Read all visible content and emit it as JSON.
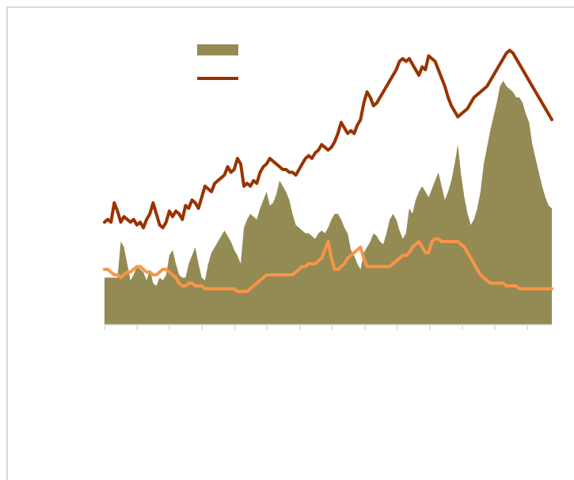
{
  "chart_data": {
    "type": "area",
    "title": "",
    "xlabel": "",
    "ylabel": "",
    "grid": false,
    "legend": "top-center",
    "colors": {
      "area": "#948a54",
      "line_dark": "#993300",
      "line_light": "#f79646",
      "axis": "#d9d9d9"
    },
    "x": [
      0,
      1,
      2,
      3,
      4,
      5,
      6,
      7,
      8,
      9,
      10,
      11,
      12,
      13,
      14,
      15,
      16,
      17,
      18,
      19,
      20,
      21,
      22,
      23,
      24,
      25,
      26,
      27,
      28,
      29,
      30,
      31,
      32,
      33,
      34,
      35,
      36,
      37,
      38,
      39,
      40,
      41,
      42,
      43,
      44,
      45,
      46,
      47,
      48,
      49,
      50,
      51,
      52,
      53,
      54,
      55,
      56,
      57,
      58,
      59,
      60,
      61,
      62,
      63,
      64,
      65,
      66,
      67,
      68,
      69,
      70,
      71,
      72,
      73,
      74,
      75,
      76,
      77,
      78,
      79,
      80,
      81,
      82,
      83,
      84,
      85,
      86,
      87,
      88,
      89,
      90,
      91,
      92,
      93,
      94,
      95,
      96,
      97,
      98,
      99,
      100,
      101,
      102,
      103,
      104,
      105,
      106,
      107,
      108,
      109,
      110,
      111,
      112,
      113,
      114,
      115,
      116,
      117,
      118,
      119,
      120,
      121,
      122,
      123,
      124,
      125,
      126,
      127,
      128,
      129,
      130,
      131,
      132,
      133,
      134,
      135,
      136,
      137,
      138
    ],
    "xlim": [
      0,
      138
    ],
    "ylim": [
      0,
      100
    ],
    "series": [
      {
        "name": "",
        "kind": "area",
        "values": [
          17,
          17,
          17,
          17,
          17,
          30,
          28,
          22,
          16,
          18,
          21,
          20,
          19,
          16,
          20,
          15,
          14,
          17,
          16,
          18,
          25,
          27,
          22,
          18,
          17,
          17,
          22,
          25,
          28,
          22,
          17,
          16,
          22,
          26,
          28,
          30,
          32,
          34,
          32,
          30,
          27,
          25,
          22,
          35,
          38,
          40,
          39,
          38,
          42,
          45,
          48,
          43,
          44,
          47,
          52,
          50,
          48,
          45,
          40,
          36,
          35,
          34,
          33,
          33,
          32,
          31,
          33,
          34,
          33,
          35,
          38,
          40,
          40,
          38,
          35,
          33,
          27,
          25,
          22,
          20,
          26,
          28,
          30,
          33,
          32,
          30,
          29,
          33,
          38,
          40,
          38,
          34,
          31,
          33,
          42,
          40,
          45,
          48,
          50,
          48,
          46,
          49,
          52,
          55,
          50,
          45,
          48,
          52,
          58,
          65,
          54,
          46,
          40,
          36,
          38,
          42,
          48,
          58,
          64,
          70,
          75,
          80,
          86,
          88,
          86,
          85,
          84,
          82,
          82,
          80,
          76,
          73,
          65,
          60,
          55,
          50,
          46,
          43,
          42
        ]
      },
      {
        "name": "",
        "kind": "line",
        "color": "dark",
        "values": [
          37,
          38,
          37,
          44,
          41,
          37,
          39,
          38,
          37,
          38,
          36,
          37,
          35,
          38,
          40,
          44,
          40,
          36,
          35,
          37,
          41,
          39,
          41,
          40,
          38,
          43,
          42,
          45,
          44,
          42,
          46,
          50,
          49,
          48,
          51,
          52,
          53,
          54,
          57,
          55,
          56,
          60,
          58,
          50,
          51,
          50,
          52,
          51,
          55,
          57,
          58,
          60,
          59,
          58,
          57,
          56,
          56,
          55,
          55,
          54,
          56,
          58,
          60,
          61,
          60,
          62,
          63,
          65,
          64,
          63,
          64,
          66,
          69,
          73,
          71,
          69,
          70,
          69,
          72,
          74,
          80,
          84,
          82,
          79,
          80,
          82,
          84,
          86,
          88,
          90,
          92,
          95,
          96,
          95,
          96,
          94,
          92,
          90,
          93,
          92,
          97,
          96,
          95,
          92,
          89,
          86,
          82,
          79,
          77,
          75,
          76,
          77,
          78,
          80,
          82,
          83,
          84,
          85,
          86,
          88,
          90,
          92,
          94,
          96,
          98,
          99,
          98,
          96,
          94,
          92,
          90,
          88,
          86,
          84,
          82,
          80,
          78,
          76,
          74
        ]
      },
      {
        "name": "",
        "kind": "line",
        "color": "light",
        "values": [
          20,
          20,
          19,
          18,
          18,
          17,
          18,
          19,
          19,
          20,
          21,
          21,
          20,
          19,
          19,
          18,
          18,
          19,
          20,
          20,
          19,
          18,
          17,
          15,
          14,
          14,
          15,
          15,
          14,
          14,
          14,
          13,
          13,
          13,
          13,
          13,
          13,
          13,
          13,
          13,
          13,
          12,
          12,
          12,
          12,
          13,
          14,
          15,
          16,
          17,
          18,
          18,
          18,
          18,
          18,
          18,
          18,
          18,
          18,
          19,
          20,
          21,
          21,
          22,
          22,
          22,
          23,
          24,
          27,
          30,
          24,
          20,
          20,
          21,
          22,
          24,
          25,
          26,
          27,
          28,
          24,
          21,
          21,
          21,
          21,
          21,
          21,
          21,
          21,
          22,
          23,
          24,
          25,
          25,
          26,
          28,
          29,
          30,
          28,
          26,
          26,
          30,
          31,
          31,
          30,
          30,
          30,
          30,
          30,
          30,
          29,
          28,
          26,
          24,
          22,
          20,
          18,
          17,
          16,
          15,
          15,
          15,
          15,
          15,
          14,
          14,
          14,
          14,
          13,
          13,
          13,
          13,
          13,
          13,
          13,
          13,
          13,
          13,
          13
        ]
      }
    ]
  }
}
